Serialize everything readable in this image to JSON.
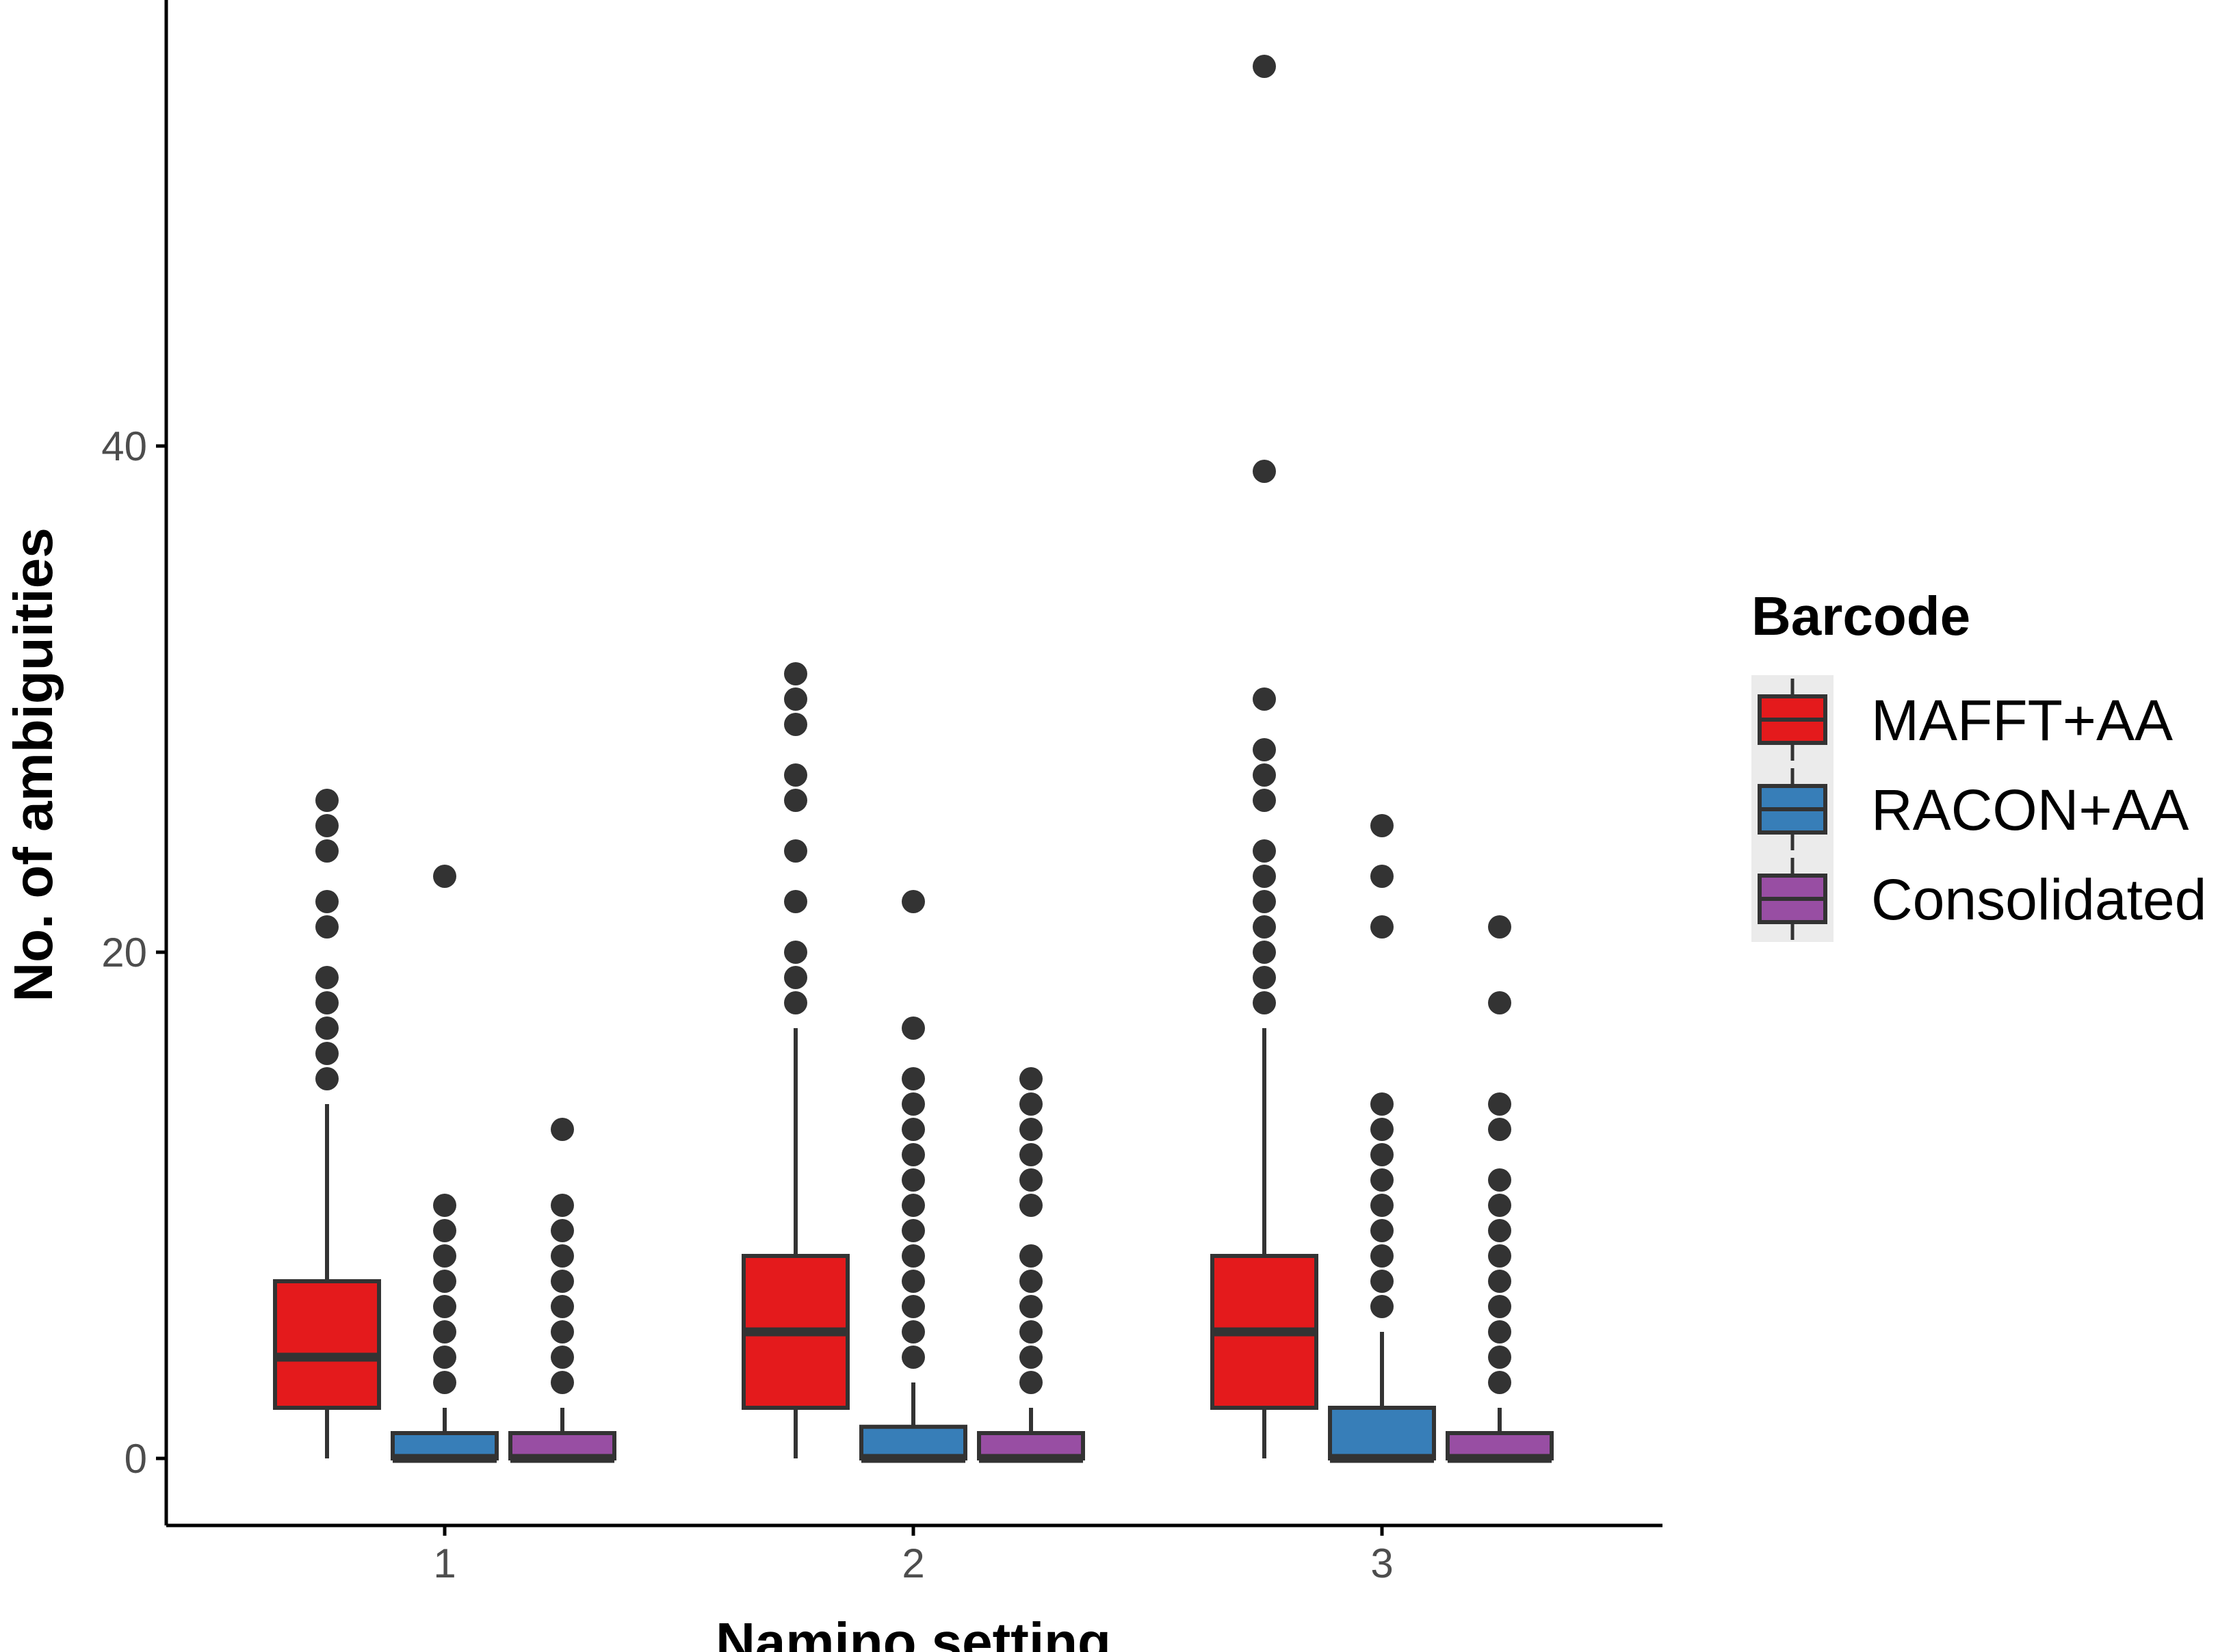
{
  "chart_data": {
    "type": "boxplot",
    "title": "",
    "xlabel": "Namino setting",
    "ylabel": "No. of ambiguities",
    "ylim": [
      -2.6,
      57.4
    ],
    "y_ticks": [
      0,
      20,
      40
    ],
    "y_tick_labels": [
      "0",
      "20",
      "40"
    ],
    "categories": [
      "1",
      "2",
      "3"
    ],
    "legend": {
      "title": "Barcode",
      "position": "right"
    },
    "colors": {
      "MAFFT+AA": "#e41a1c",
      "RACON+AA": "#377eb8",
      "Consolidated": "#984ea3",
      "outline": "#333333",
      "axis": "#000000",
      "legend_bg": "#ebebeb"
    },
    "series": [
      {
        "name": "MAFFT+AA",
        "boxes": [
          {
            "category": "1",
            "min": 0,
            "q1": 2,
            "median": 4,
            "q3": 7,
            "max": 14,
            "outliers": [
              15,
              16,
              17,
              18,
              19,
              21,
              22,
              24,
              25,
              26
            ]
          },
          {
            "category": "2",
            "min": 0,
            "q1": 2,
            "median": 5,
            "q3": 8,
            "max": 17,
            "outliers": [
              18,
              19,
              20,
              22,
              24,
              26,
              27,
              29,
              30,
              31
            ]
          },
          {
            "category": "3",
            "min": 0,
            "q1": 2,
            "median": 5,
            "q3": 8,
            "max": 17,
            "outliers": [
              18,
              19,
              20,
              21,
              22,
              23,
              24,
              26,
              27,
              28,
              30,
              39,
              55
            ]
          }
        ]
      },
      {
        "name": "RACON+AA",
        "boxes": [
          {
            "category": "1",
            "min": 0,
            "q1": 0,
            "median": 0,
            "q3": 1,
            "max": 2,
            "outliers": [
              3,
              4,
              5,
              6,
              7,
              8,
              9,
              10,
              23
            ]
          },
          {
            "category": "2",
            "min": 0,
            "q1": 0,
            "median": 0,
            "q3": 1.25,
            "max": 3,
            "outliers": [
              4,
              5,
              6,
              7,
              8,
              9,
              10,
              11,
              12,
              13,
              14,
              15,
              17,
              22
            ]
          },
          {
            "category": "3",
            "min": 0,
            "q1": 0,
            "median": 0,
            "q3": 2,
            "max": 5,
            "outliers": [
              6,
              7,
              8,
              9,
              10,
              11,
              12,
              13,
              14,
              21,
              23,
              25
            ]
          }
        ]
      },
      {
        "name": "Consolidated",
        "boxes": [
          {
            "category": "1",
            "min": 0,
            "q1": 0,
            "median": 0,
            "q3": 1,
            "max": 2,
            "outliers": [
              3,
              4,
              5,
              6,
              7,
              8,
              9,
              10,
              13
            ]
          },
          {
            "category": "2",
            "min": 0,
            "q1": 0,
            "median": 0,
            "q3": 1,
            "max": 2,
            "outliers": [
              3,
              4,
              5,
              6,
              7,
              8,
              10,
              11,
              12,
              13,
              14,
              15
            ]
          },
          {
            "category": "3",
            "min": 0,
            "q1": 0,
            "median": 0,
            "q3": 1,
            "max": 2,
            "outliers": [
              3,
              4,
              5,
              6,
              7,
              8,
              9,
              10,
              11,
              13,
              14,
              18,
              21
            ]
          }
        ]
      }
    ]
  }
}
